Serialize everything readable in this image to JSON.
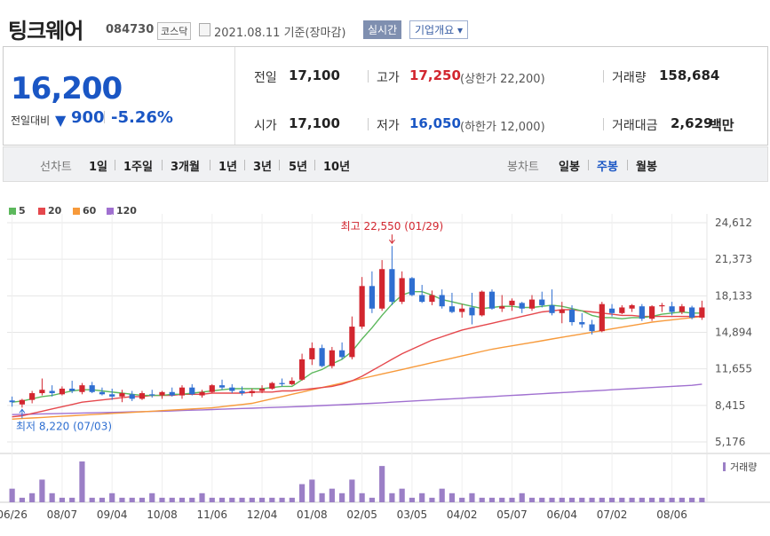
{
  "stock": {
    "name": "팅크웨어",
    "code": "084730",
    "market": "코스닥",
    "as_of": "2021.08.11 기준(장마감)",
    "realtime_label": "실시간",
    "overview_label": "기업개요 ▾"
  },
  "quote": {
    "price": "16,200",
    "change_label": "전일대비",
    "change_arrow": "▼",
    "change": "900",
    "change_pct": "-5.26%",
    "prev_label": "전일",
    "prev": "17,100",
    "open_label": "시가",
    "open": "17,100",
    "high_label": "고가",
    "high": "17,250",
    "upper_limit": "(상한가 22,200)",
    "low_label": "저가",
    "low": "16,050",
    "lower_limit": "(하한가 12,000)",
    "volume_label": "거래량",
    "volume": "158,684",
    "amount_label": "거래대금",
    "amount": "2,629",
    "amount_unit": "백만"
  },
  "periods": {
    "line_label": "선차트",
    "line_items": [
      "1일",
      "1주일",
      "3개월",
      "1년",
      "3년",
      "5년",
      "10년"
    ],
    "candle_label": "봉차트",
    "candle_items": [
      "일봉",
      "주봉",
      "월봉"
    ],
    "active_candle": "주봉"
  },
  "chart_data": {
    "type": "candlestick",
    "interval": "weekly",
    "legend": [
      {
        "name": "5",
        "color": "#5cb85c"
      },
      {
        "name": "20",
        "color": "#e5484d"
      },
      {
        "name": "60",
        "color": "#f79a3b"
      },
      {
        "name": "120",
        "color": "#a070d0"
      }
    ],
    "y_ticks": [
      24612,
      21373,
      18133,
      14894,
      11655,
      8415,
      5176
    ],
    "ylim": [
      5176,
      24612
    ],
    "x_ticks": [
      "06/26",
      "08/07",
      "09/04",
      "10/08",
      "11/06",
      "12/04",
      "01/08",
      "02/05",
      "03/05",
      "04/02",
      "05/07",
      "06/04",
      "07/02",
      "08/06"
    ],
    "max_annotation": "최고 22,550 (01/29)",
    "min_annotation": "최저 8,220 (07/03)",
    "volume_label": "거래량",
    "up_color": "#d2262f",
    "down_color": "#2f6fd1",
    "candles": [
      [
        8850,
        9200,
        8300,
        8700
      ],
      [
        8500,
        9000,
        8220,
        8900
      ],
      [
        8900,
        9700,
        8600,
        9500
      ],
      [
        9500,
        10800,
        9300,
        9800
      ],
      [
        9700,
        10200,
        9200,
        9500
      ],
      [
        9400,
        10100,
        9300,
        9900
      ],
      [
        9900,
        10600,
        9500,
        9700
      ],
      [
        9600,
        10400,
        9400,
        10200
      ],
      [
        10200,
        10500,
        9500,
        9600
      ],
      [
        9600,
        10000,
        9300,
        9400
      ],
      [
        9400,
        9900,
        8900,
        9200
      ],
      [
        9200,
        9800,
        8700,
        9500
      ],
      [
        9400,
        9700,
        8800,
        9000
      ],
      [
        9000,
        9700,
        8900,
        9500
      ],
      [
        9400,
        9800,
        9100,
        9300
      ],
      [
        9300,
        9700,
        9000,
        9600
      ],
      [
        9600,
        10000,
        9200,
        9300
      ],
      [
        9300,
        10200,
        9000,
        10000
      ],
      [
        10000,
        10300,
        9300,
        9400
      ],
      [
        9300,
        9800,
        9100,
        9600
      ],
      [
        9600,
        10300,
        9500,
        10200
      ],
      [
        10200,
        10700,
        9800,
        10000
      ],
      [
        10000,
        10300,
        9500,
        9700
      ],
      [
        9700,
        10100,
        9300,
        9500
      ],
      [
        9500,
        9900,
        9200,
        9700
      ],
      [
        9700,
        10200,
        9500,
        9900
      ],
      [
        9900,
        10500,
        9800,
        10400
      ],
      [
        10400,
        10800,
        10100,
        10300
      ],
      [
        10300,
        10900,
        10200,
        10600
      ],
      [
        10700,
        13000,
        10600,
        12500
      ],
      [
        12500,
        14000,
        12000,
        13500
      ],
      [
        13500,
        13800,
        11800,
        11900
      ],
      [
        11900,
        13600,
        11700,
        13300
      ],
      [
        13300,
        14000,
        12500,
        12700
      ],
      [
        12700,
        16300,
        12500,
        15400
      ],
      [
        15400,
        19800,
        15200,
        19000
      ],
      [
        19000,
        20300,
        16600,
        17000
      ],
      [
        17000,
        21300,
        16800,
        20500
      ],
      [
        20500,
        22550,
        17300,
        17600
      ],
      [
        17600,
        20300,
        17400,
        19700
      ],
      [
        19700,
        19800,
        18100,
        18200
      ],
      [
        18200,
        19100,
        17500,
        17600
      ],
      [
        17600,
        18600,
        17300,
        18200
      ],
      [
        18200,
        18700,
        17000,
        17200
      ],
      [
        17200,
        18400,
        16600,
        16700
      ],
      [
        16700,
        17400,
        16200,
        17000
      ],
      [
        17100,
        18400,
        15600,
        16400
      ],
      [
        16400,
        18600,
        16300,
        18500
      ],
      [
        18500,
        18700,
        16900,
        17000
      ],
      [
        17000,
        18200,
        16700,
        17200
      ],
      [
        17300,
        17900,
        16800,
        17700
      ],
      [
        17500,
        17600,
        16600,
        17000
      ],
      [
        17000,
        18200,
        16800,
        17800
      ],
      [
        17800,
        18500,
        17100,
        17300
      ],
      [
        17300,
        18700,
        16400,
        16600
      ],
      [
        16600,
        17600,
        15700,
        16900
      ],
      [
        16900,
        17300,
        15500,
        15800
      ],
      [
        15800,
        16600,
        15300,
        15600
      ],
      [
        15600,
        16000,
        14700,
        15000
      ],
      [
        15000,
        17600,
        14900,
        17400
      ],
      [
        17000,
        17400,
        16300,
        16600
      ],
      [
        16600,
        17300,
        16500,
        17100
      ],
      [
        17000,
        17400,
        16700,
        17300
      ],
      [
        17200,
        17400,
        15900,
        16100
      ],
      [
        16100,
        17300,
        15900,
        17200
      ],
      [
        17200,
        17500,
        16700,
        17300
      ],
      [
        17200,
        17600,
        16400,
        16700
      ],
      [
        16700,
        17400,
        16500,
        17200
      ],
      [
        17100,
        17250,
        16050,
        16200
      ],
      [
        16200,
        17700,
        16000,
        17100
      ]
    ],
    "ma5": [
      8700,
      8800,
      9000,
      9200,
      9300,
      9500,
      9700,
      9800,
      9800,
      9700,
      9600,
      9500,
      9400,
      9300,
      9300,
      9300,
      9400,
      9400,
      9500,
      9600,
      9700,
      9800,
      9900,
      9900,
      9900,
      9900,
      10000,
      10100,
      10100,
      10700,
      11300,
      11600,
      12100,
      12500,
      13200,
      14300,
      15300,
      16400,
      17400,
      18200,
      18500,
      18500,
      18200,
      17800,
      17600,
      17400,
      17200,
      17000,
      17100,
      17200,
      17200,
      17100,
      17100,
      17200,
      17300,
      17200,
      17000,
      16800,
      16400,
      16200,
      16200,
      16100,
      16200,
      16200,
      16300,
      16500,
      16600,
      16700,
      16600,
      16600
    ],
    "ma20": [
      7400,
      7500,
      7700,
      7900,
      8100,
      8300,
      8500,
      8700,
      8800,
      8900,
      9000,
      9100,
      9200,
      9200,
      9300,
      9300,
      9300,
      9400,
      9400,
      9400,
      9500,
      9500,
      9500,
      9500,
      9600,
      9600,
      9600,
      9700,
      9700,
      9800,
      9900,
      10000,
      10100,
      10300,
      10600,
      11000,
      11500,
      12000,
      12500,
      13000,
      13400,
      13800,
      14200,
      14500,
      14800,
      15100,
      15300,
      15500,
      15700,
      15900,
      16100,
      16300,
      16500,
      16700,
      16800,
      16900,
      16900,
      16800,
      16700,
      16600,
      16500,
      16400,
      16400,
      16300,
      16300,
      16300,
      16300,
      16300,
      16300,
      16300
    ],
    "ma60": [
      7200,
      7250,
      7300,
      7350,
      7400,
      7450,
      7500,
      7550,
      7600,
      7650,
      7700,
      7750,
      7800,
      7850,
      7900,
      7950,
      8000,
      8050,
      8100,
      8150,
      8200,
      8300,
      8400,
      8500,
      8600,
      8800,
      9000,
      9200,
      9400,
      9600,
      9800,
      10000,
      10200,
      10400,
      10600,
      10800,
      11000,
      11200,
      11400,
      11600,
      11800,
      12000,
      12200,
      12400,
      12600,
      12800,
      13000,
      13200,
      13400,
      13550,
      13700,
      13850,
      14000,
      14150,
      14300,
      14450,
      14600,
      14750,
      14900,
      15050,
      15200,
      15350,
      15500,
      15650,
      15800,
      15900,
      16000,
      16100,
      16200,
      16300
    ],
    "ma120": [
      7600,
      7620,
      7640,
      7660,
      7680,
      7700,
      7720,
      7740,
      7760,
      7780,
      7800,
      7820,
      7840,
      7860,
      7880,
      7900,
      7930,
      7960,
      7990,
      8020,
      8050,
      8080,
      8110,
      8140,
      8170,
      8200,
      8230,
      8260,
      8290,
      8320,
      8360,
      8400,
      8440,
      8480,
      8520,
      8560,
      8600,
      8650,
      8700,
      8750,
      8800,
      8850,
      8900,
      8950,
      9000,
      9050,
      9100,
      9150,
      9200,
      9250,
      9300,
      9350,
      9400,
      9450,
      9500,
      9550,
      9600,
      9650,
      9700,
      9750,
      9800,
      9850,
      9900,
      9950,
      10000,
      10050,
      10100,
      10150,
      10200,
      10300
    ],
    "volume": [
      3,
      1,
      2,
      5,
      2,
      1,
      1,
      9,
      1,
      1,
      2,
      1,
      1,
      1,
      2,
      1,
      1,
      1,
      1,
      2,
      1,
      1,
      1,
      1,
      1,
      1,
      1,
      1,
      1,
      4,
      5,
      2,
      3,
      2,
      5,
      2,
      1,
      8,
      2,
      3,
      1,
      2,
      1,
      3,
      2,
      1,
      2,
      1,
      1,
      1,
      1,
      2,
      1,
      1,
      1,
      1,
      1,
      1,
      1,
      1,
      1,
      1,
      1,
      1,
      1,
      1,
      1,
      1,
      1,
      1
    ]
  }
}
